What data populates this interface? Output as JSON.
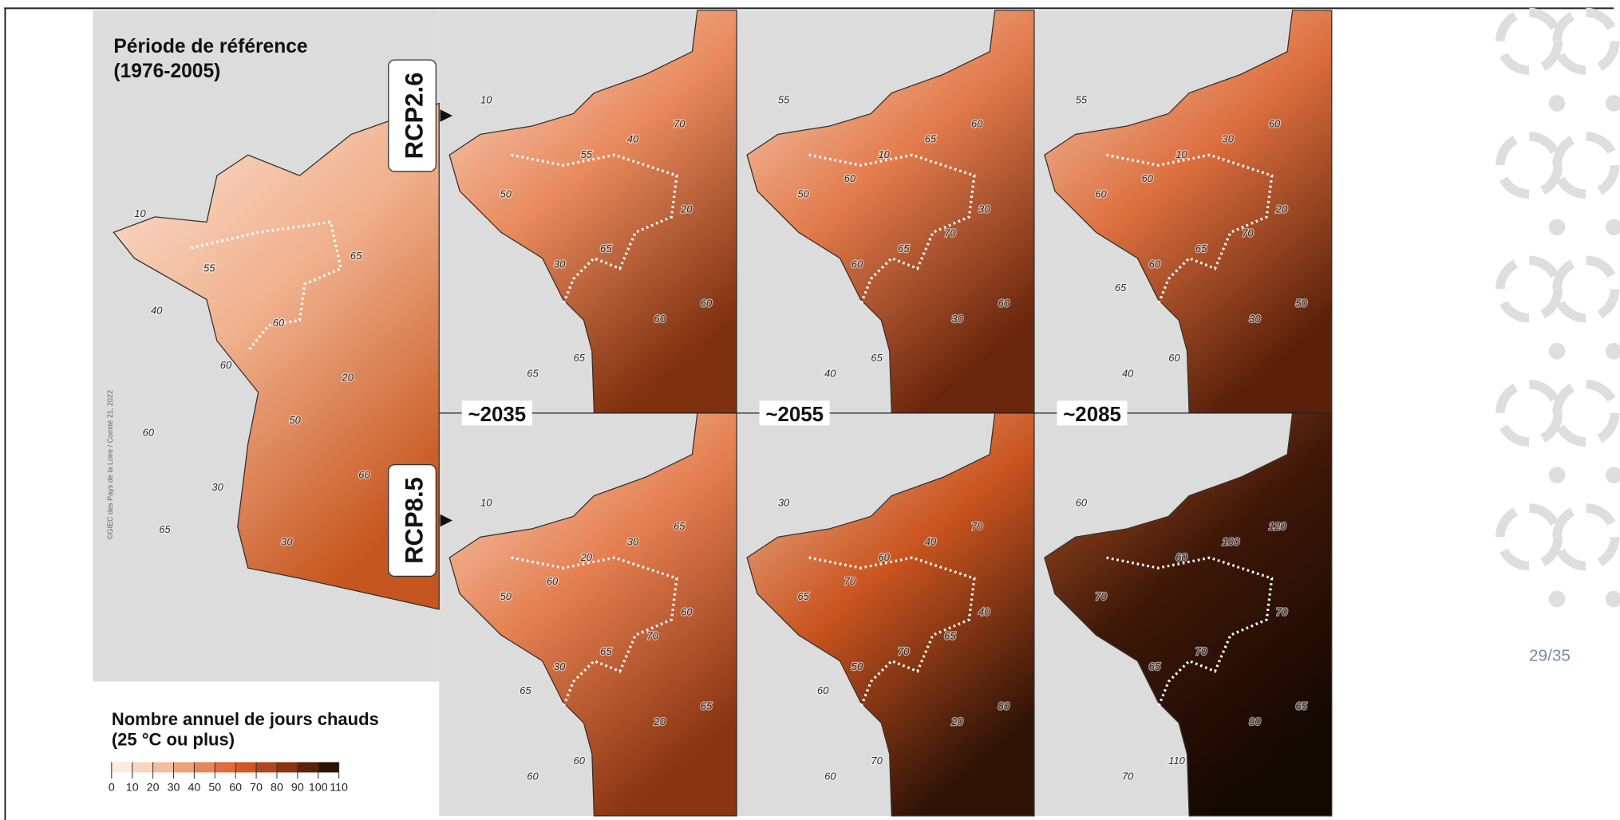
{
  "header": {
    "title": "Période de référence",
    "period": "(1976-2005)"
  },
  "scenarios": [
    "RCP2.6",
    "RCP8.5"
  ],
  "horizons": [
    "~2035",
    "~2055",
    "~2085"
  ],
  "legend": {
    "title": "Nombre annuel de jours chauds",
    "subtitle": "(25 °C ou plus)",
    "ticks": [
      0,
      10,
      20,
      30,
      40,
      50,
      60,
      70,
      80,
      90,
      100,
      110
    ],
    "colors": [
      "#fcebe3",
      "#f8d6c3",
      "#f3bea0",
      "#eea27c",
      "#e8865a",
      "#de6c3c",
      "#cf5826",
      "#b1461b",
      "#8a3412",
      "#5e220b",
      "#2e1206"
    ]
  },
  "credit": "©GIEC des Pays de la Loire / Comité 21, 2022",
  "page": "29/35",
  "maps": [
    {
      "labels": [
        10,
        55,
        60,
        20,
        60,
        30,
        30,
        65,
        40,
        60,
        50,
        60,
        65
      ]
    },
    {
      "labels": [
        10,
        55,
        20,
        30,
        60,
        65,
        40,
        50,
        65,
        60,
        65,
        70
      ]
    },
    {
      "labels": [
        55,
        10,
        30,
        60,
        30,
        40,
        65,
        50,
        65,
        60,
        65,
        60,
        60,
        70
      ]
    },
    {
      "labels": [
        55,
        10,
        20,
        60,
        30,
        40,
        30,
        60,
        65,
        50,
        60,
        60,
        60,
        70,
        65
      ]
    },
    {
      "labels": [
        10,
        20,
        60,
        30,
        20,
        60,
        30,
        50,
        65,
        65,
        60,
        65,
        60,
        70,
        65
      ]
    },
    {
      "labels": [
        30,
        60,
        40,
        50,
        20,
        60,
        40,
        65,
        70,
        80,
        70,
        70,
        70,
        65,
        60
      ]
    },
    {
      "labels": [
        60,
        60,
        70,
        65,
        90,
        70,
        100,
        70,
        70,
        65,
        110,
        120
      ]
    }
  ]
}
